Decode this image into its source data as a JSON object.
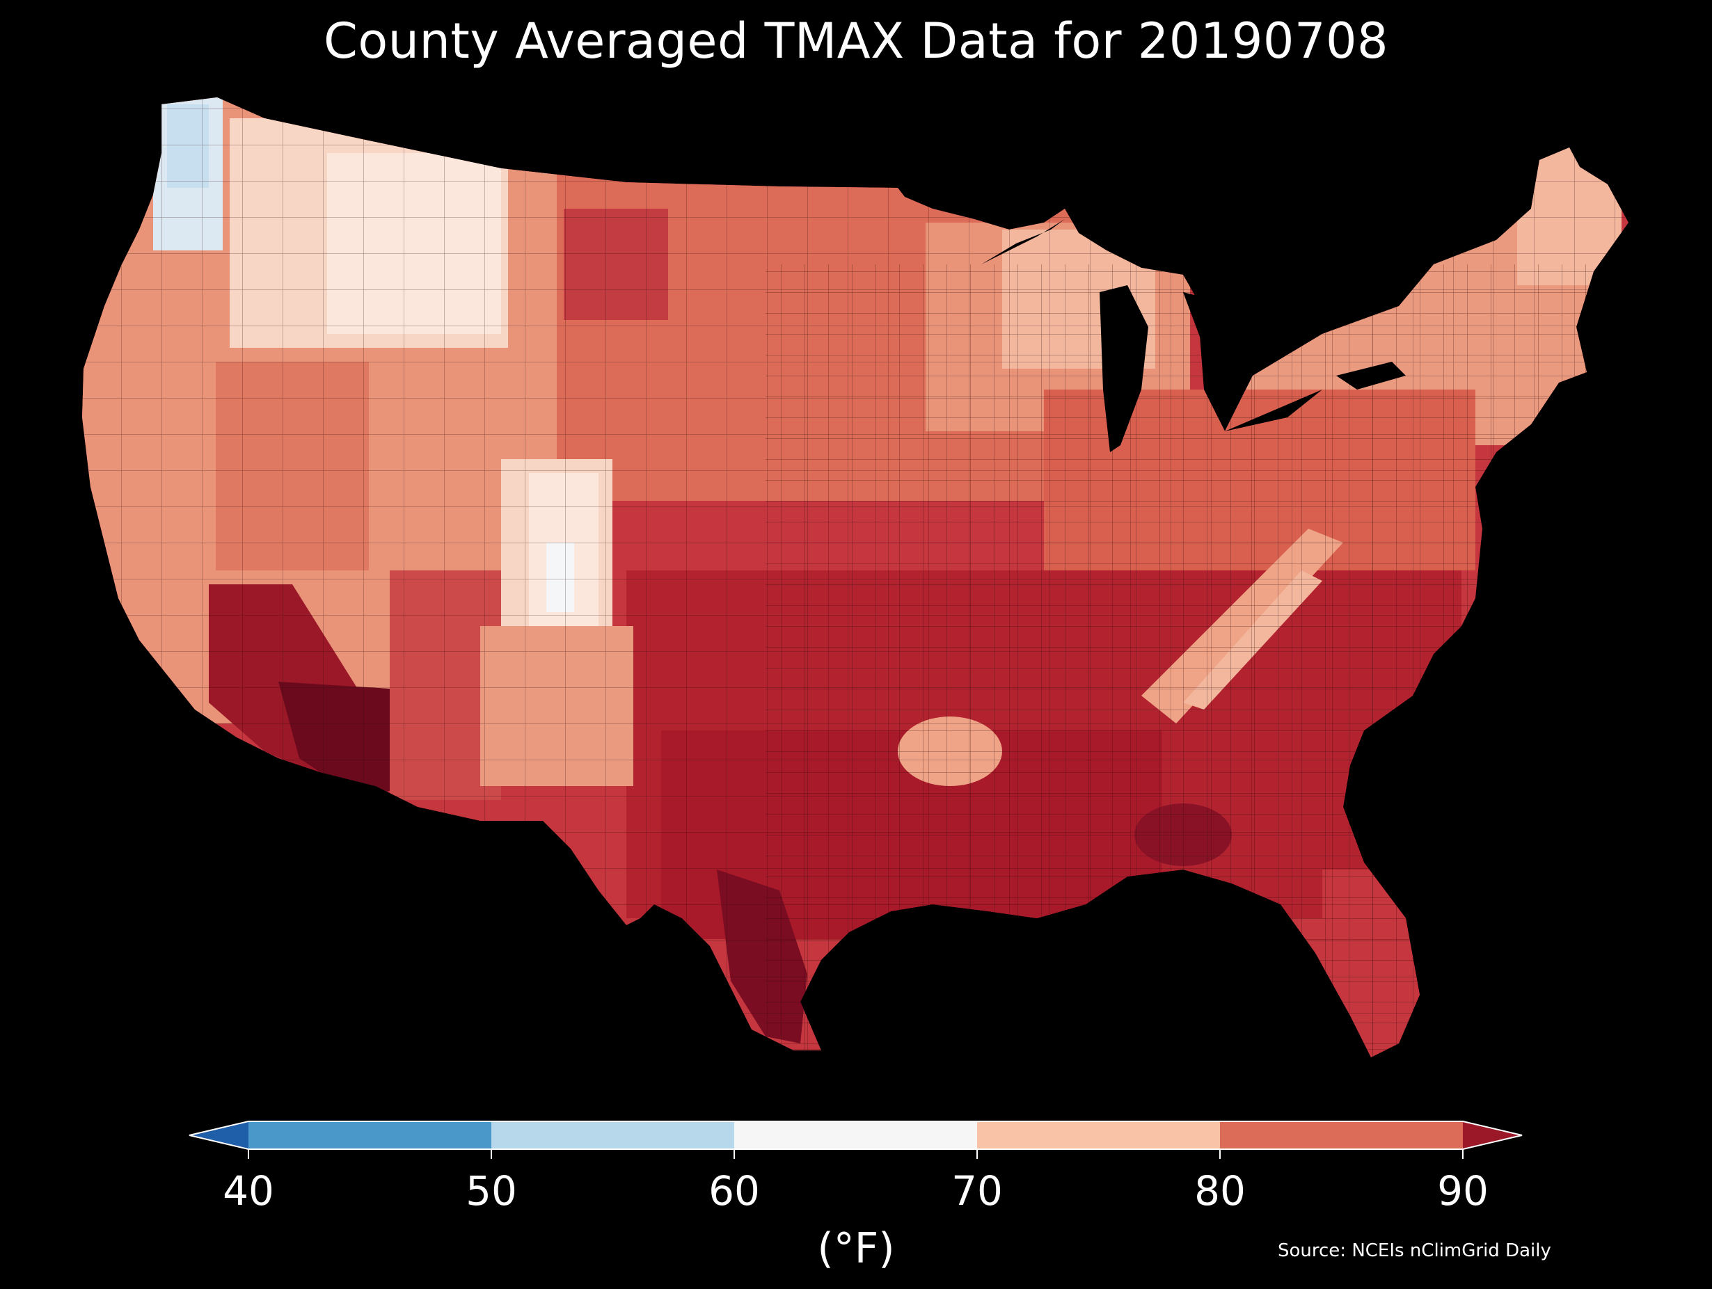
{
  "title": "County Averaged TMAX Data for 20190708",
  "source": "Source: NCEIs nClimGrid Daily",
  "colorbar": {
    "units": "(°F)",
    "ticks": [
      "40",
      "50",
      "60",
      "70",
      "80",
      "90"
    ],
    "bins": [
      {
        "label": "<40",
        "color": "#1f5ea8"
      },
      {
        "label": "40-50",
        "color": "#4a98c9"
      },
      {
        "label": "50-60",
        "color": "#b7d7ea"
      },
      {
        "label": "60-70",
        "color": "#f6f6f6"
      },
      {
        "label": "70-80",
        "color": "#f8c3a7"
      },
      {
        "label": "80-90",
        "color": "#dc6c58"
      },
      {
        "label": ">90",
        "color": "#9b1828"
      }
    ],
    "extend": "both"
  },
  "map": {
    "region": "Contiguous United States counties",
    "variable": "TMAX",
    "date": "20190708",
    "regional_pattern": [
      {
        "area": "Pacific Northwest coast",
        "range": "50-60"
      },
      {
        "area": "Northern Rockies",
        "range": "60-70"
      },
      {
        "area": "Great Basin",
        "range": "70-80"
      },
      {
        "area": "Desert Southwest",
        "range": ">90"
      },
      {
        "area": "Northern Plains",
        "range": "80-90"
      },
      {
        "area": "Upper Midwest / Great Lakes",
        "range": "70-80"
      },
      {
        "area": "Northeast",
        "range": "70-80"
      },
      {
        "area": "Southern Plains and Texas",
        "range": ">90"
      },
      {
        "area": "Southeast",
        "range": ">90"
      },
      {
        "area": "Appalachians",
        "range": "70-80"
      }
    ]
  }
}
